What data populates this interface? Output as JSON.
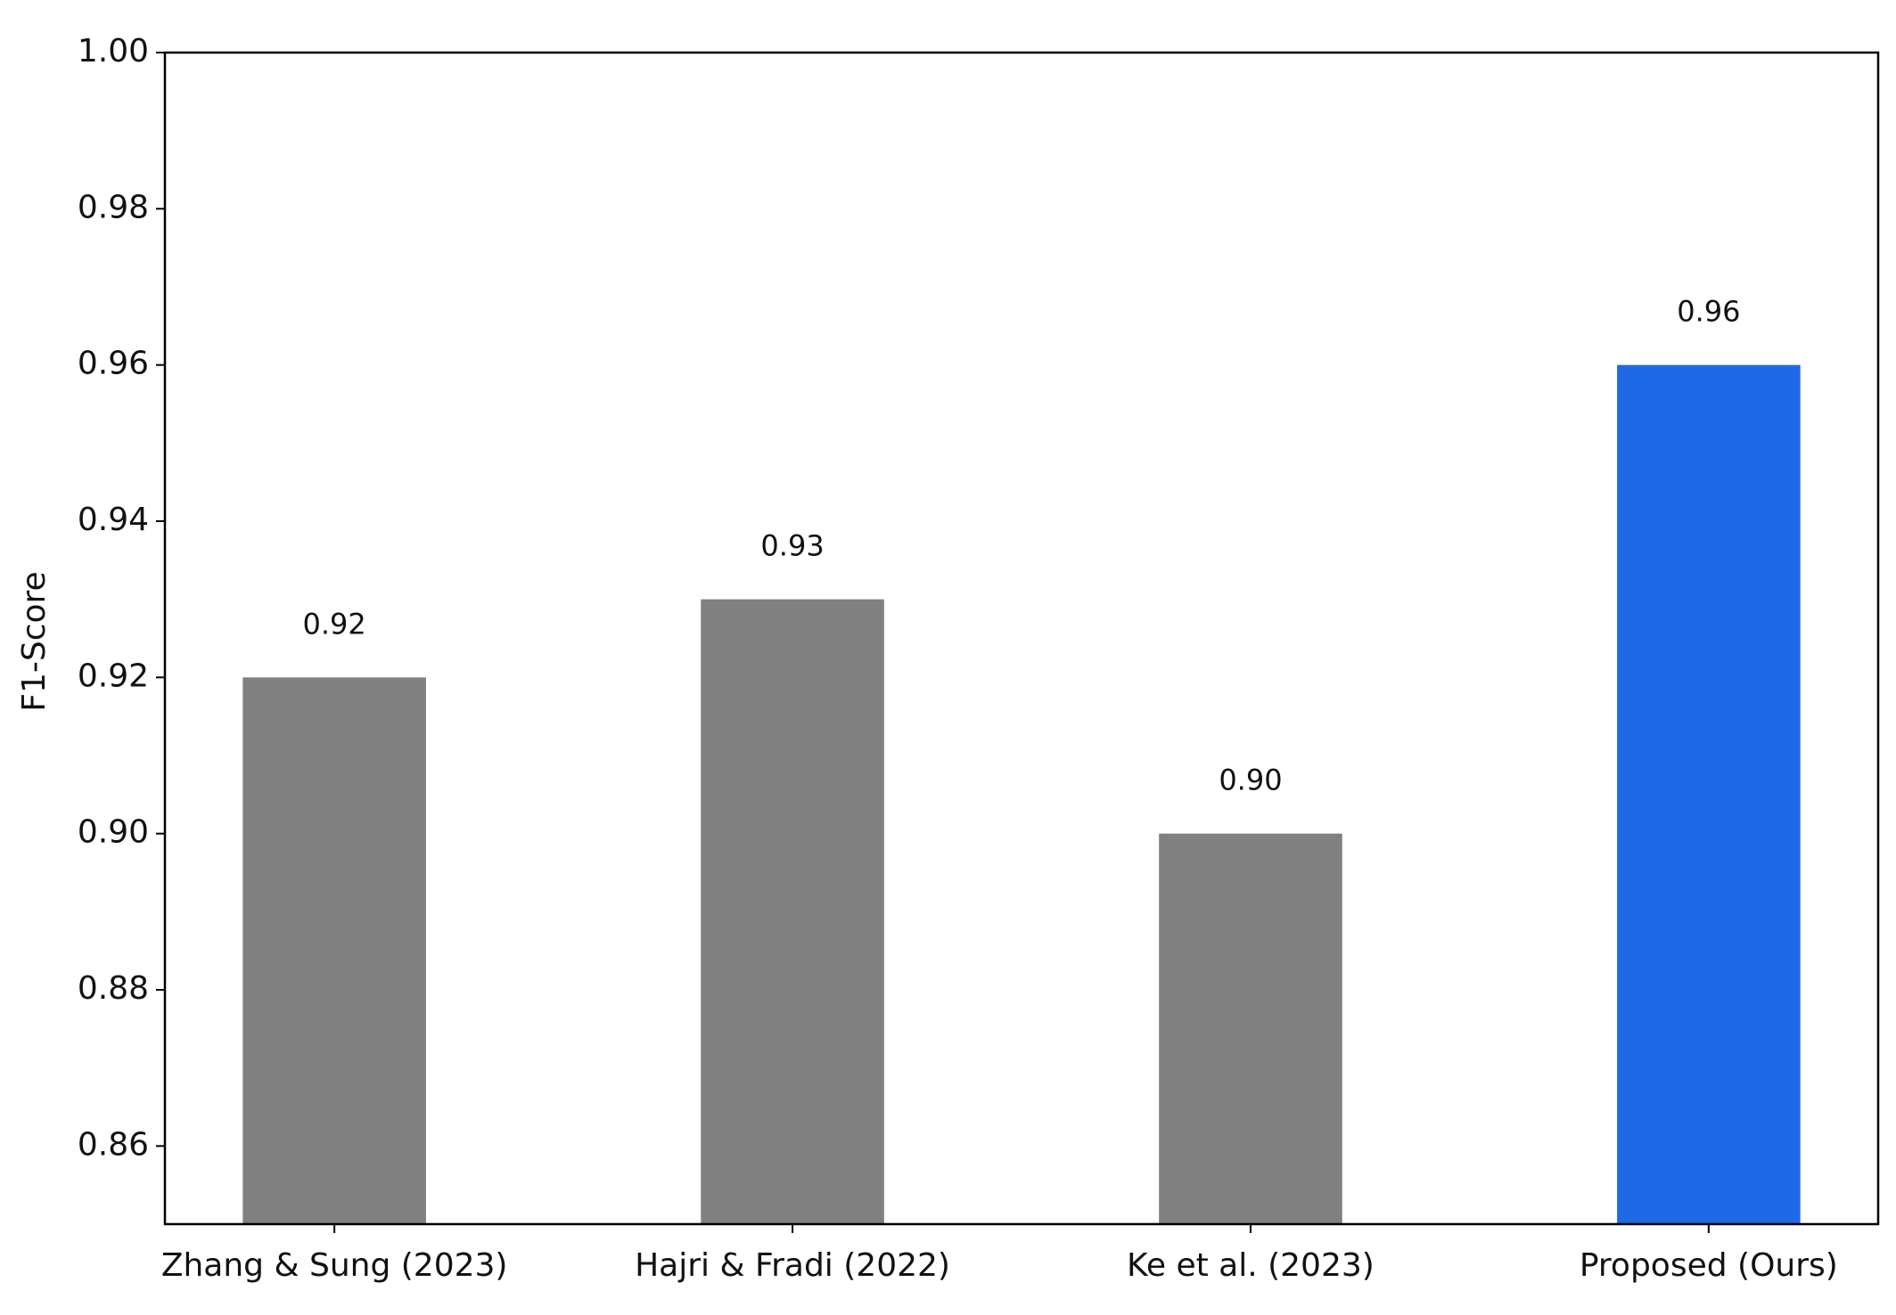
{
  "chart_data": {
    "type": "bar",
    "ylabel": "F1-Score",
    "categories": [
      "Zhang & Sung (2023)",
      "Hajri & Fradi (2022)",
      "Ke et al. (2023)",
      "Proposed (Ours)"
    ],
    "values": [
      0.92,
      0.93,
      0.9,
      0.96
    ],
    "value_labels": [
      "0.92",
      "0.93",
      "0.90",
      "0.96"
    ],
    "colors": [
      "#808080",
      "#808080",
      "#808080",
      "#1f69e6"
    ],
    "ylim": [
      0.85,
      1.0
    ],
    "yticks": [
      0.86,
      0.88,
      {
        "value": 0.9,
        "label": "0.90"
      },
      0.92,
      0.94,
      0.96,
      0.98,
      {
        "value": 1.0,
        "label": "1.00"
      }
    ],
    "grid": false
  }
}
